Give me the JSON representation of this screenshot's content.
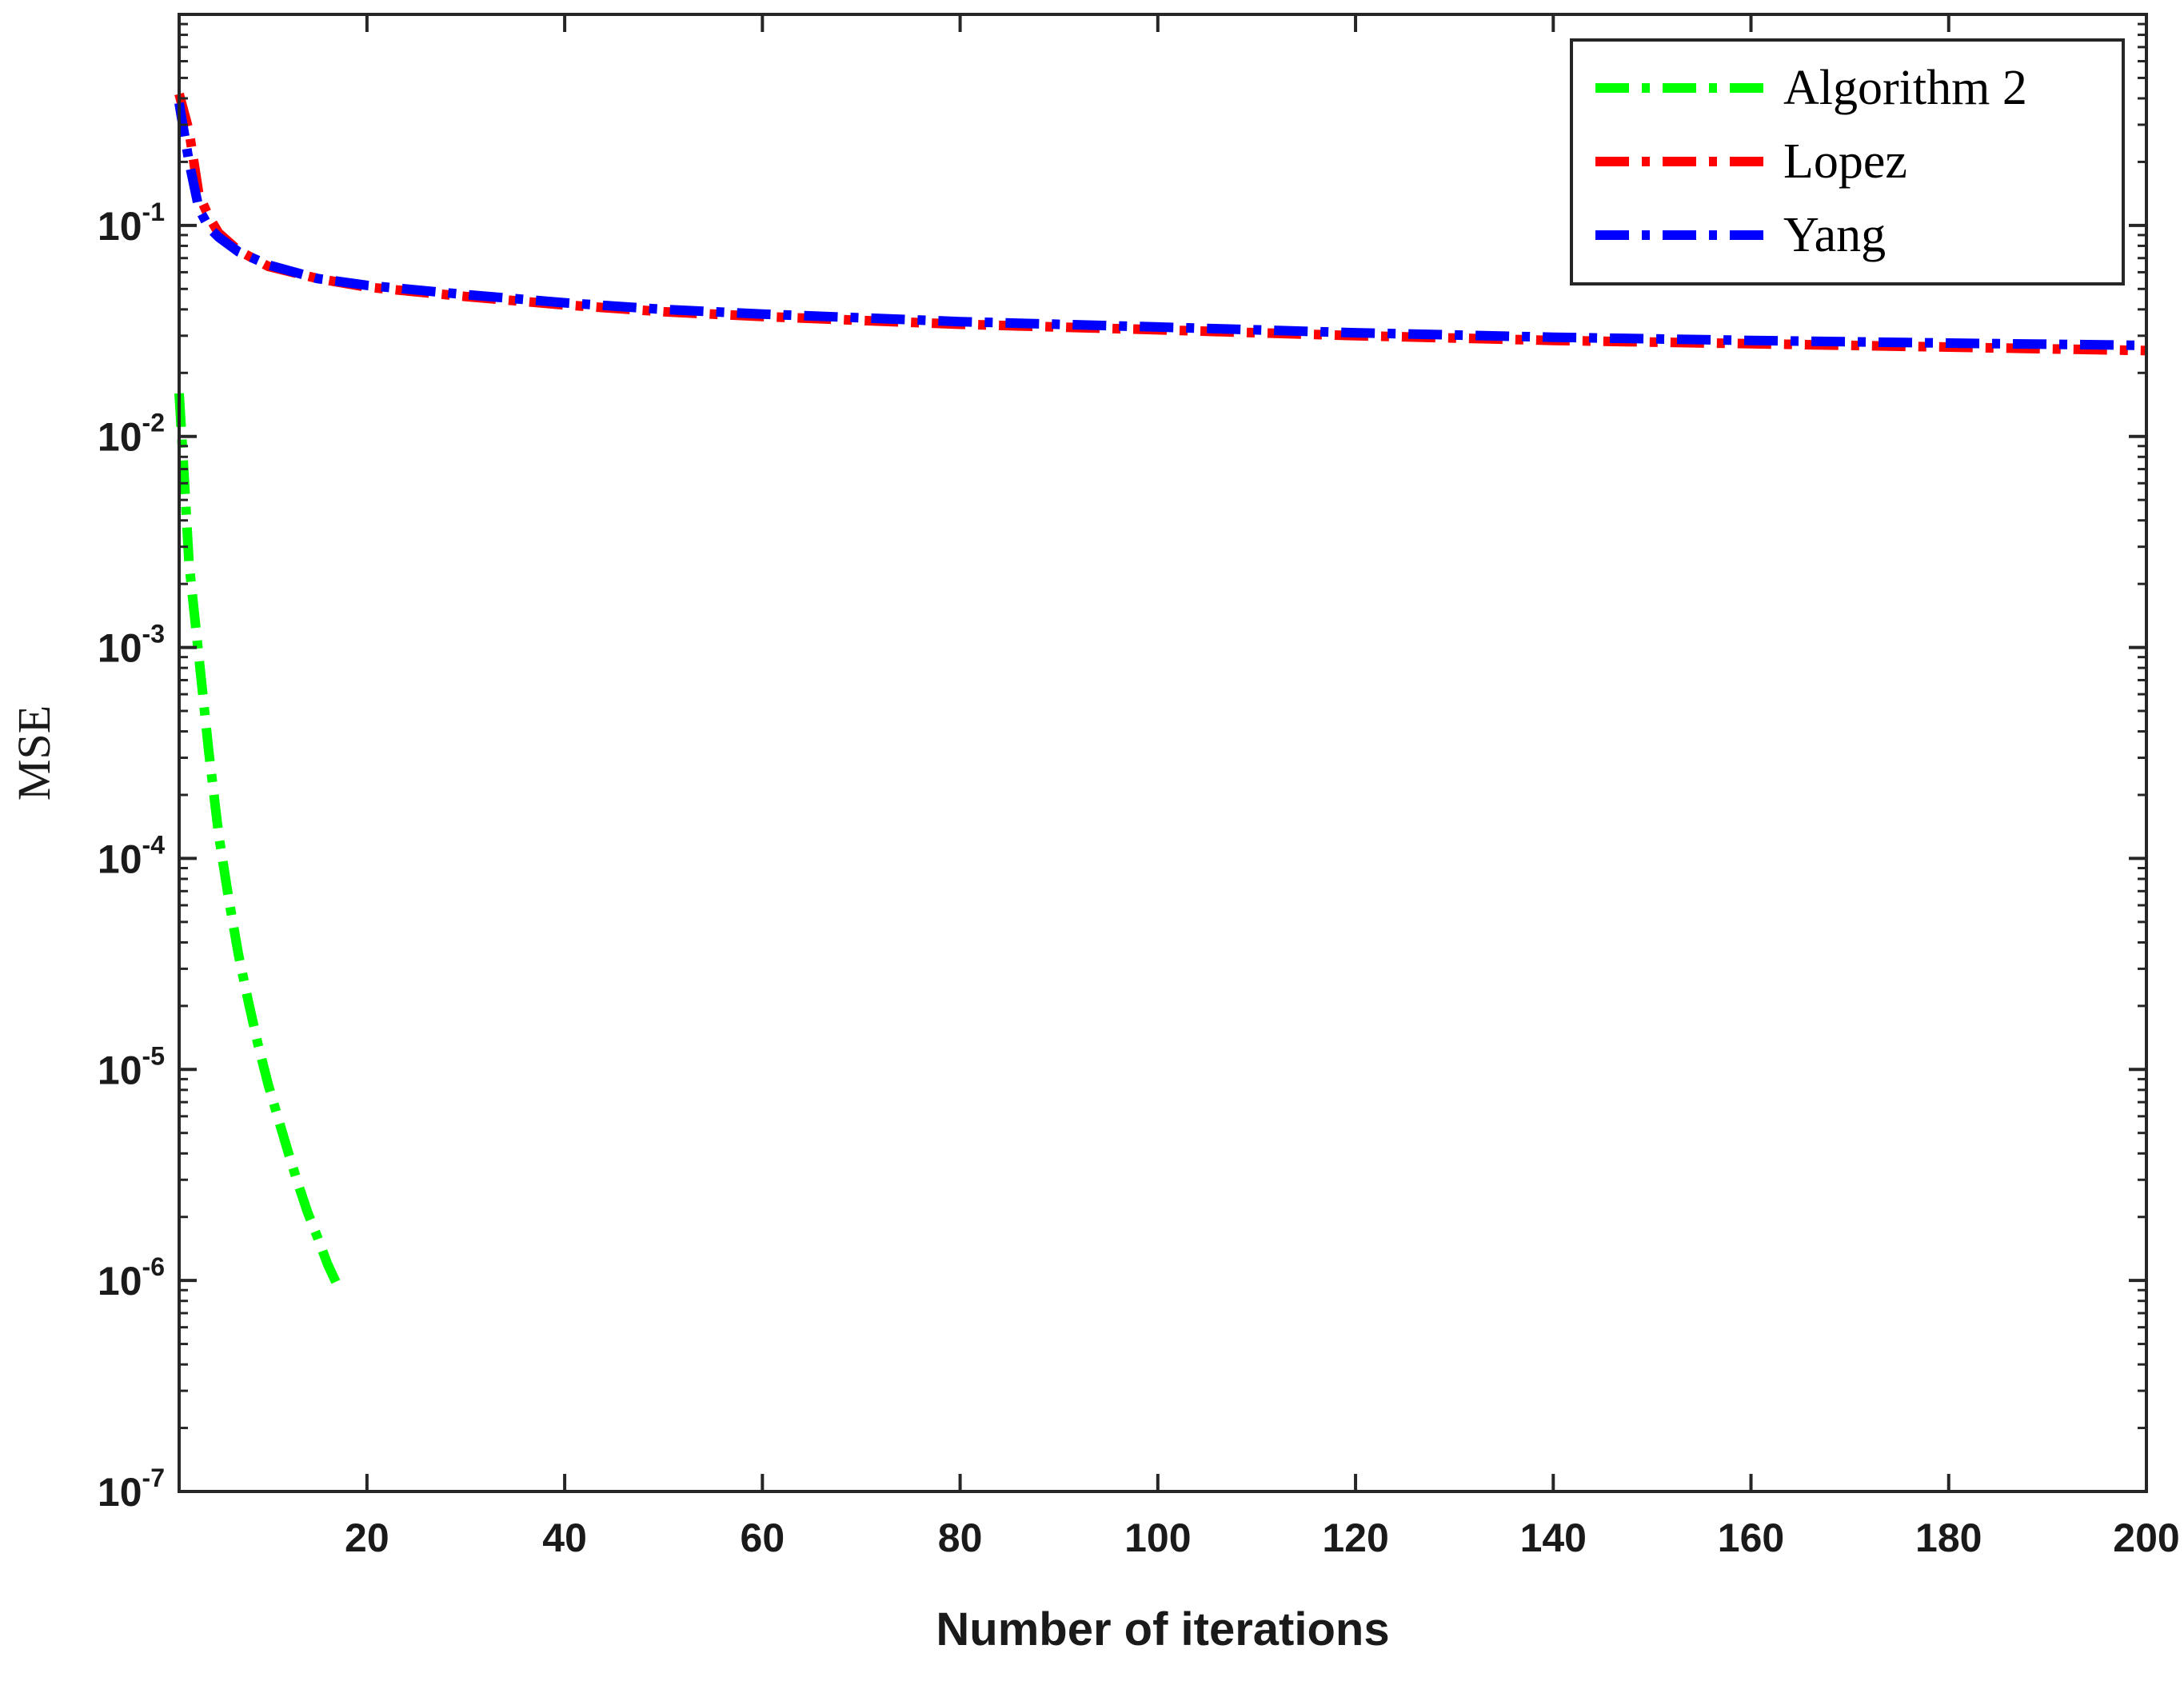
{
  "chart_data": {
    "type": "line",
    "title": "",
    "xlabel": "Number of iterations",
    "ylabel": "MSE",
    "xlim": [
      1,
      200
    ],
    "ylim": [
      1e-07,
      1
    ],
    "yscale": "log",
    "grid": false,
    "legend_position": "top-right",
    "x_tick_labels": [
      "20",
      "40",
      "60",
      "80",
      "100",
      "120",
      "140",
      "160",
      "180",
      "200"
    ],
    "x_tick_values": [
      20,
      40,
      60,
      80,
      100,
      120,
      140,
      160,
      180,
      200
    ],
    "y_tick_labels": [
      {
        "base": "10",
        "exp": "-1"
      },
      {
        "base": "10",
        "exp": "-2"
      },
      {
        "base": "10",
        "exp": "-3"
      },
      {
        "base": "10",
        "exp": "-4"
      },
      {
        "base": "10",
        "exp": "-5"
      },
      {
        "base": "10",
        "exp": "-6"
      },
      {
        "base": "10",
        "exp": "-7"
      }
    ],
    "y_tick_values": [
      0.1,
      0.01,
      0.001,
      0.0001,
      1e-05,
      1e-06,
      1e-07
    ],
    "series": [
      {
        "name": "Algorithm 2",
        "color": "#00ff00",
        "style": "dash-dot",
        "points": [
          [
            1,
            0.016
          ],
          [
            1.5,
            0.0065
          ],
          [
            2,
            0.0025
          ],
          [
            3,
            0.0009
          ],
          [
            4,
            0.00032
          ],
          [
            5,
            0.00013
          ],
          [
            6,
            6.5e-05
          ],
          [
            7,
            3.5e-05
          ],
          [
            8,
            2.1e-05
          ],
          [
            9,
            1.3e-05
          ],
          [
            10,
            8.5e-06
          ],
          [
            11,
            5.9e-06
          ],
          [
            12,
            4.1e-06
          ],
          [
            13,
            2.9e-06
          ],
          [
            14,
            2.1e-06
          ],
          [
            15,
            1.6e-06
          ],
          [
            16,
            1.2e-06
          ],
          [
            17,
            9.5e-07
          ]
        ]
      },
      {
        "name": "Lopez",
        "color": "#ff0000",
        "style": "dash-dot",
        "points": [
          [
            1,
            0.42
          ],
          [
            2,
            0.28
          ],
          [
            3,
            0.14
          ],
          [
            4,
            0.11
          ],
          [
            5,
            0.092
          ],
          [
            7,
            0.076
          ],
          [
            10,
            0.064
          ],
          [
            15,
            0.056
          ],
          [
            20,
            0.051
          ],
          [
            30,
            0.046
          ],
          [
            40,
            0.042
          ],
          [
            50,
            0.039
          ],
          [
            60,
            0.037
          ],
          [
            80,
            0.034
          ],
          [
            100,
            0.032
          ],
          [
            120,
            0.03
          ],
          [
            140,
            0.0285
          ],
          [
            160,
            0.0275
          ],
          [
            180,
            0.0265
          ],
          [
            200,
            0.0255
          ]
        ]
      },
      {
        "name": "Yang",
        "color": "#0000ff",
        "style": "dash-dot",
        "points": [
          [
            1,
            0.38
          ],
          [
            2,
            0.2
          ],
          [
            3,
            0.12
          ],
          [
            4,
            0.098
          ],
          [
            5,
            0.088
          ],
          [
            7,
            0.075
          ],
          [
            10,
            0.065
          ],
          [
            15,
            0.056
          ],
          [
            20,
            0.052
          ],
          [
            30,
            0.047
          ],
          [
            40,
            0.043
          ],
          [
            50,
            0.04
          ],
          [
            60,
            0.038
          ],
          [
            80,
            0.035
          ],
          [
            100,
            0.033
          ],
          [
            120,
            0.031
          ],
          [
            140,
            0.0295
          ],
          [
            160,
            0.0285
          ],
          [
            180,
            0.0277
          ],
          [
            200,
            0.027
          ]
        ]
      }
    ]
  }
}
